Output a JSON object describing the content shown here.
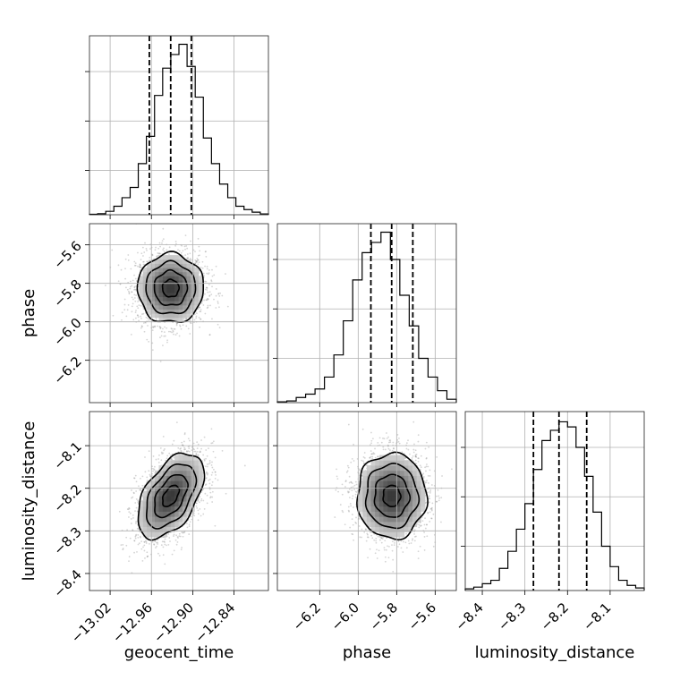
{
  "chart_data": {
    "type": "corner",
    "grid": true,
    "parameters": [
      {
        "name": "geocent_time",
        "label": "geocent_time",
        "range": [
          -13.05,
          -12.79
        ],
        "ticks": [
          -13.02,
          -12.96,
          -12.9,
          -12.84
        ],
        "tick_labels": [
          "−13.02",
          "−12.96",
          "−12.90",
          "−12.84"
        ],
        "quantiles": [
          -12.963,
          -12.932,
          -12.902
        ],
        "histogram": [
          0.003,
          0.006,
          0.02,
          0.05,
          0.1,
          0.16,
          0.3,
          0.46,
          0.7,
          0.86,
          0.94,
          1.0,
          0.87,
          0.69,
          0.45,
          0.3,
          0.18,
          0.1,
          0.05,
          0.03,
          0.015,
          0.005
        ]
      },
      {
        "name": "phase",
        "label": "phase",
        "range": [
          -6.42,
          -5.49
        ],
        "ticks": [
          -6.2,
          -6.0,
          -5.8,
          -5.6
        ],
        "tick_labels": [
          "−6.2",
          "−6.0",
          "−5.8",
          "−5.6"
        ],
        "quantiles": [
          -5.934,
          -5.826,
          -5.716
        ],
        "histogram": [
          0.005,
          0.01,
          0.03,
          0.05,
          0.08,
          0.15,
          0.28,
          0.48,
          0.72,
          0.88,
          0.94,
          1.0,
          0.84,
          0.63,
          0.45,
          0.26,
          0.15,
          0.07,
          0.02
        ]
      },
      {
        "name": "luminosity_distance",
        "label": "luminosity_distance",
        "range": [
          -8.44,
          -8.02
        ],
        "ticks": [
          -8.4,
          -8.3,
          -8.2,
          -8.1
        ],
        "tick_labels": [
          "−8.4",
          "−8.3",
          "−8.2",
          "−8.1"
        ],
        "quantiles": [
          -8.28,
          -8.22,
          -8.155
        ],
        "histogram": [
          0.01,
          0.02,
          0.04,
          0.06,
          0.13,
          0.23,
          0.36,
          0.51,
          0.71,
          0.88,
          0.94,
          0.99,
          0.96,
          0.84,
          0.67,
          0.46,
          0.26,
          0.14,
          0.06,
          0.03,
          0.015
        ]
      }
    ],
    "pairs": [
      {
        "x": "geocent_time",
        "y": "phase",
        "center": [
          -12.932,
          -5.826
        ],
        "sigma": [
          0.024,
          0.09
        ],
        "correlation": 0.0
      },
      {
        "x": "geocent_time",
        "y": "luminosity_distance",
        "center": [
          -12.932,
          -8.218
        ],
        "sigma": [
          0.024,
          0.05
        ],
        "correlation": 0.5
      },
      {
        "x": "phase",
        "y": "luminosity_distance",
        "center": [
          -5.826,
          -8.218
        ],
        "sigma": [
          0.09,
          0.05
        ],
        "correlation": 0.0
      }
    ]
  }
}
